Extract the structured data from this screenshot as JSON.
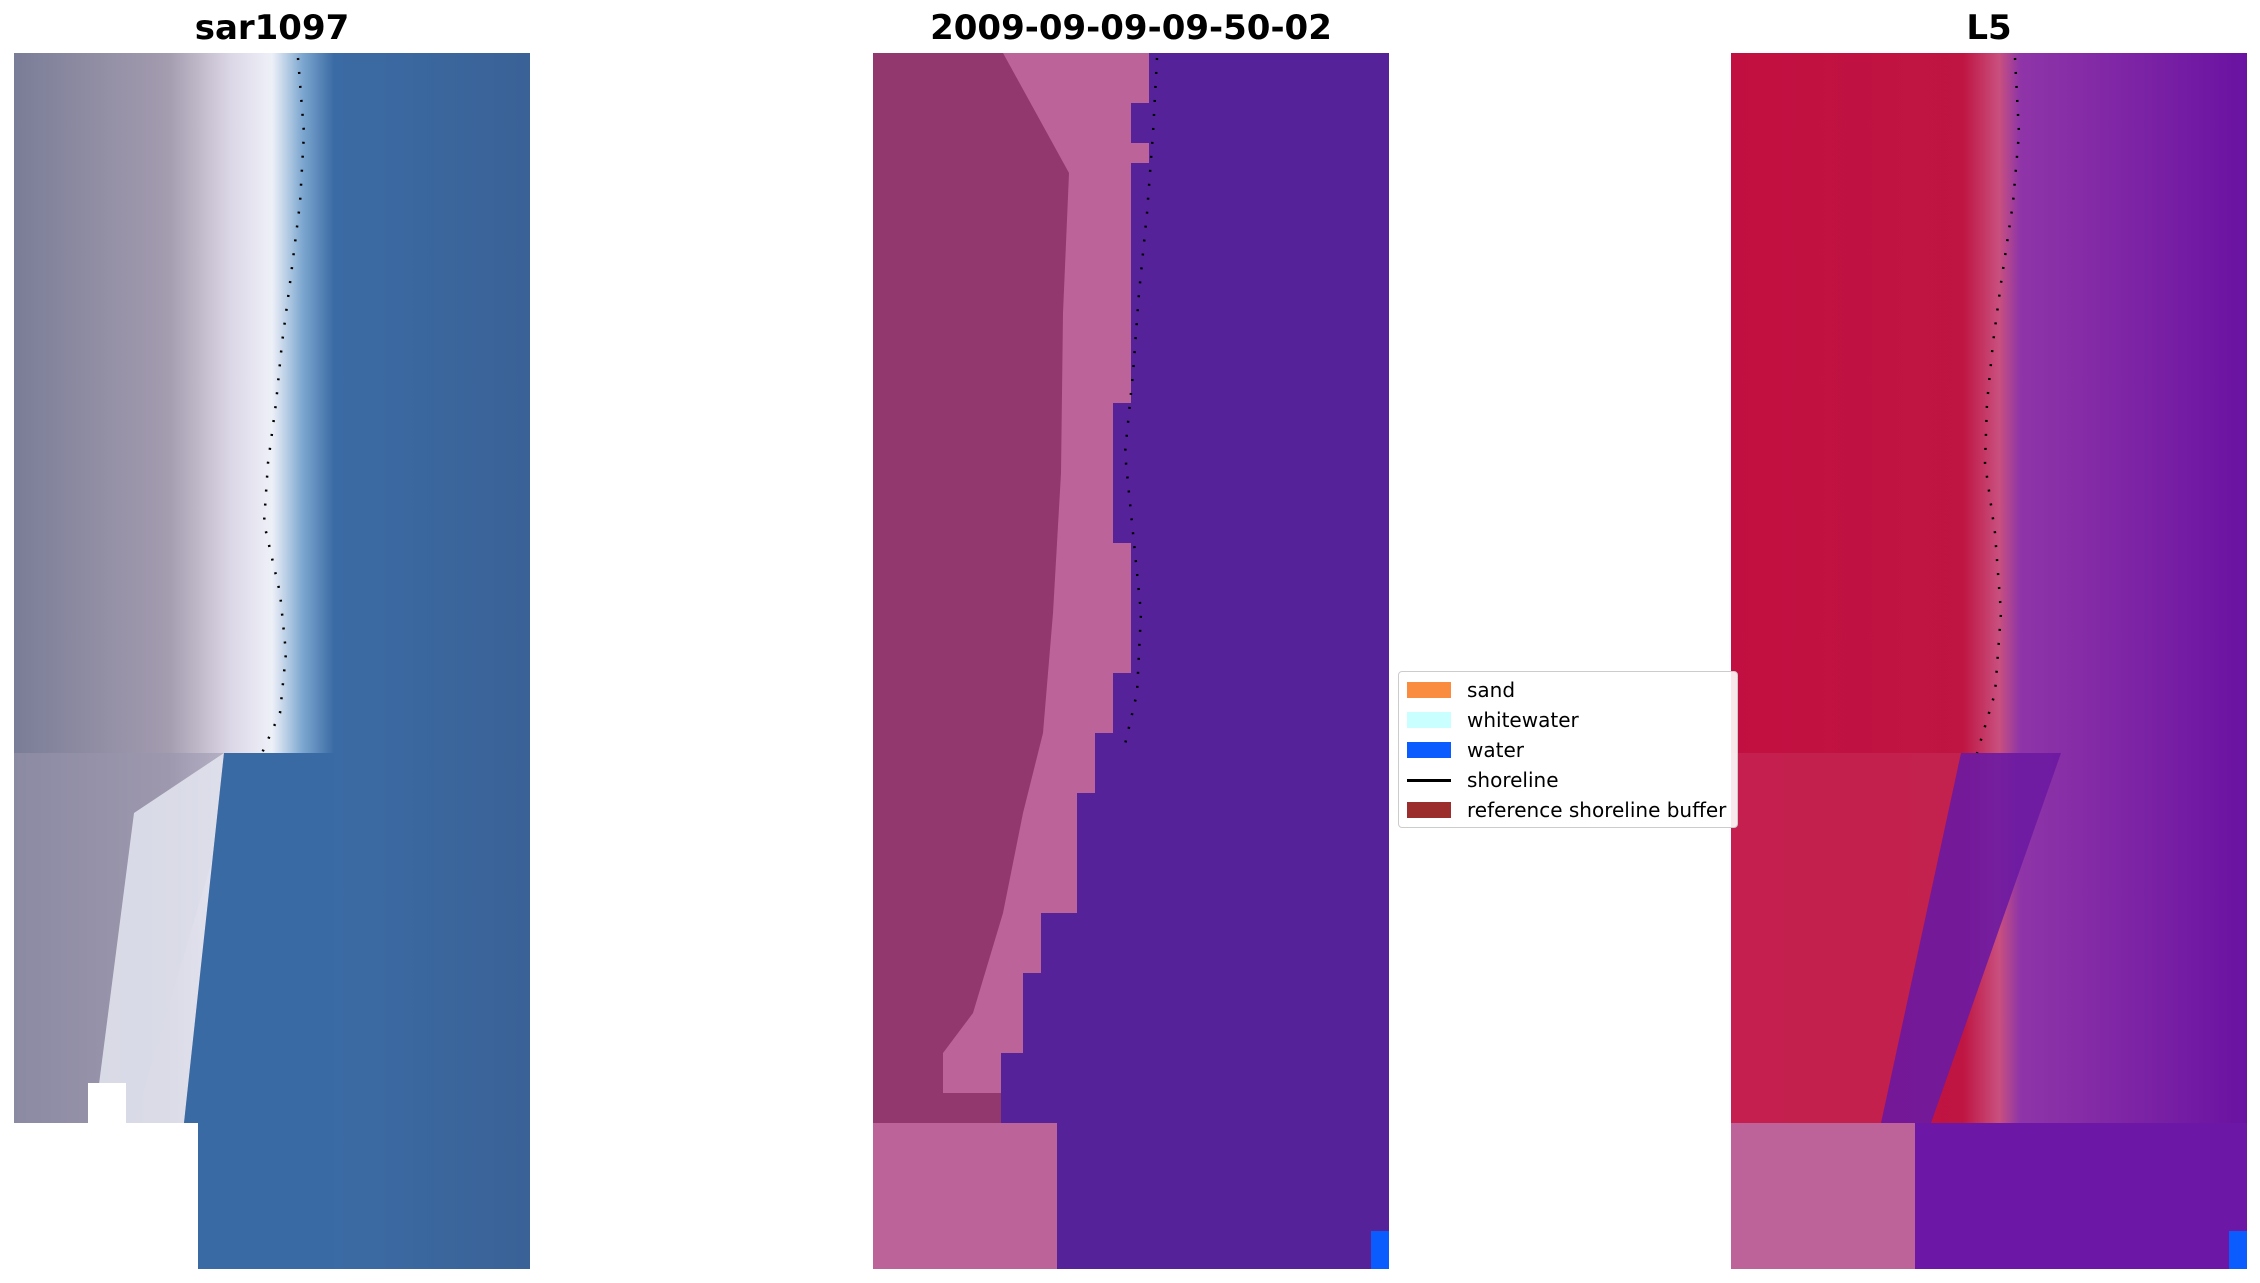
{
  "panels": [
    {
      "title": "sar1097"
    },
    {
      "title": "2009-09-09-09-50-02"
    },
    {
      "title": "L5"
    }
  ],
  "legend": {
    "items": [
      {
        "label": "sand",
        "color": "#f98c3f",
        "kind": "patch"
      },
      {
        "label": "whitewater",
        "color": "#caffff",
        "kind": "patch"
      },
      {
        "label": "water",
        "color": "#0a5cff",
        "kind": "patch"
      },
      {
        "label": "shoreline",
        "color": "#000000",
        "kind": "line"
      },
      {
        "label": "reference shoreline buffer",
        "color": "#9b2d2d",
        "kind": "patch"
      }
    ]
  },
  "colors": {
    "rgb_water": "#3a6aa3",
    "rgb_sand": "#a79bb1",
    "rgb_white": "#e9edf6",
    "class_land": "#9b3f78",
    "class_beach": "#bd6399",
    "class_water": "#55229a",
    "mndwi_land": "#c10f3f",
    "mndwi_water": "#6c1aa2",
    "water_pixel": "#0a5cff"
  }
}
